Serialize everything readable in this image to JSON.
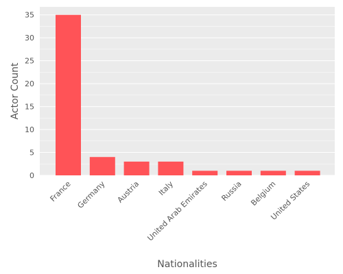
{
  "chart_data": {
    "type": "bar",
    "title": "",
    "xlabel": "Nationalities",
    "ylabel": "Actor Count",
    "categories": [
      "France",
      "Germany",
      "Austria",
      "Italy",
      "United Arab Emirates",
      "Russia",
      "Belgium",
      "United States"
    ],
    "values": [
      35,
      4,
      3,
      3,
      1,
      1,
      1,
      1
    ],
    "ylim": [
      0,
      36.75
    ],
    "yticks": [
      0,
      5,
      10,
      15,
      20,
      25,
      30,
      35
    ],
    "grid": true,
    "legend": "none",
    "colors": {
      "bar": "#ff5357",
      "plot_background": "#ebebeb",
      "grid": "#ffffff",
      "text": "#555555"
    }
  }
}
